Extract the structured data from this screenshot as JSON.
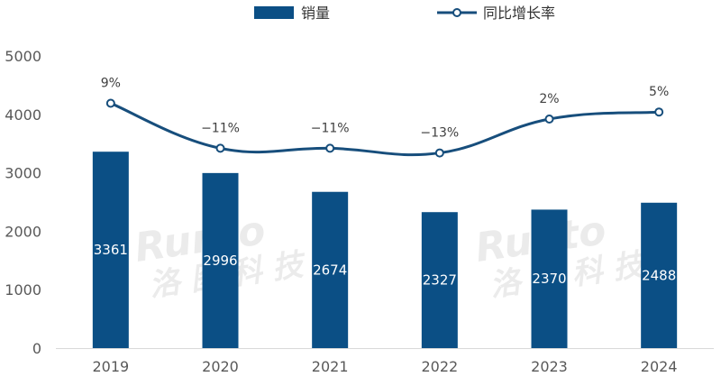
{
  "chart_data": {
    "type": "bar+line",
    "categories": [
      "2019",
      "2020",
      "2021",
      "2022",
      "2023",
      "2024"
    ],
    "series": [
      {
        "name": "销量",
        "type": "bar",
        "values": [
          3361,
          2996,
          2674,
          2327,
          2370,
          2488
        ]
      },
      {
        "name": "同比增长率",
        "type": "line",
        "values": [
          9,
          -11,
          -11,
          -13,
          2,
          5
        ],
        "labels": [
          "9%",
          "−11%",
          "−11%",
          "−13%",
          "2%",
          "5%"
        ]
      }
    ],
    "y_ticks": [
      "0",
      "1000",
      "2000",
      "3000",
      "4000",
      "5000"
    ],
    "ylim": [
      0,
      5000
    ],
    "line_position_values": [
      4190,
      3420,
      3420,
      3340,
      3920,
      4040
    ],
    "grid": false,
    "legend_position": "top-center",
    "colors": {
      "bar": "#0b4f85",
      "line": "#174e7c"
    },
    "watermark": "Runto 洛图科技"
  }
}
